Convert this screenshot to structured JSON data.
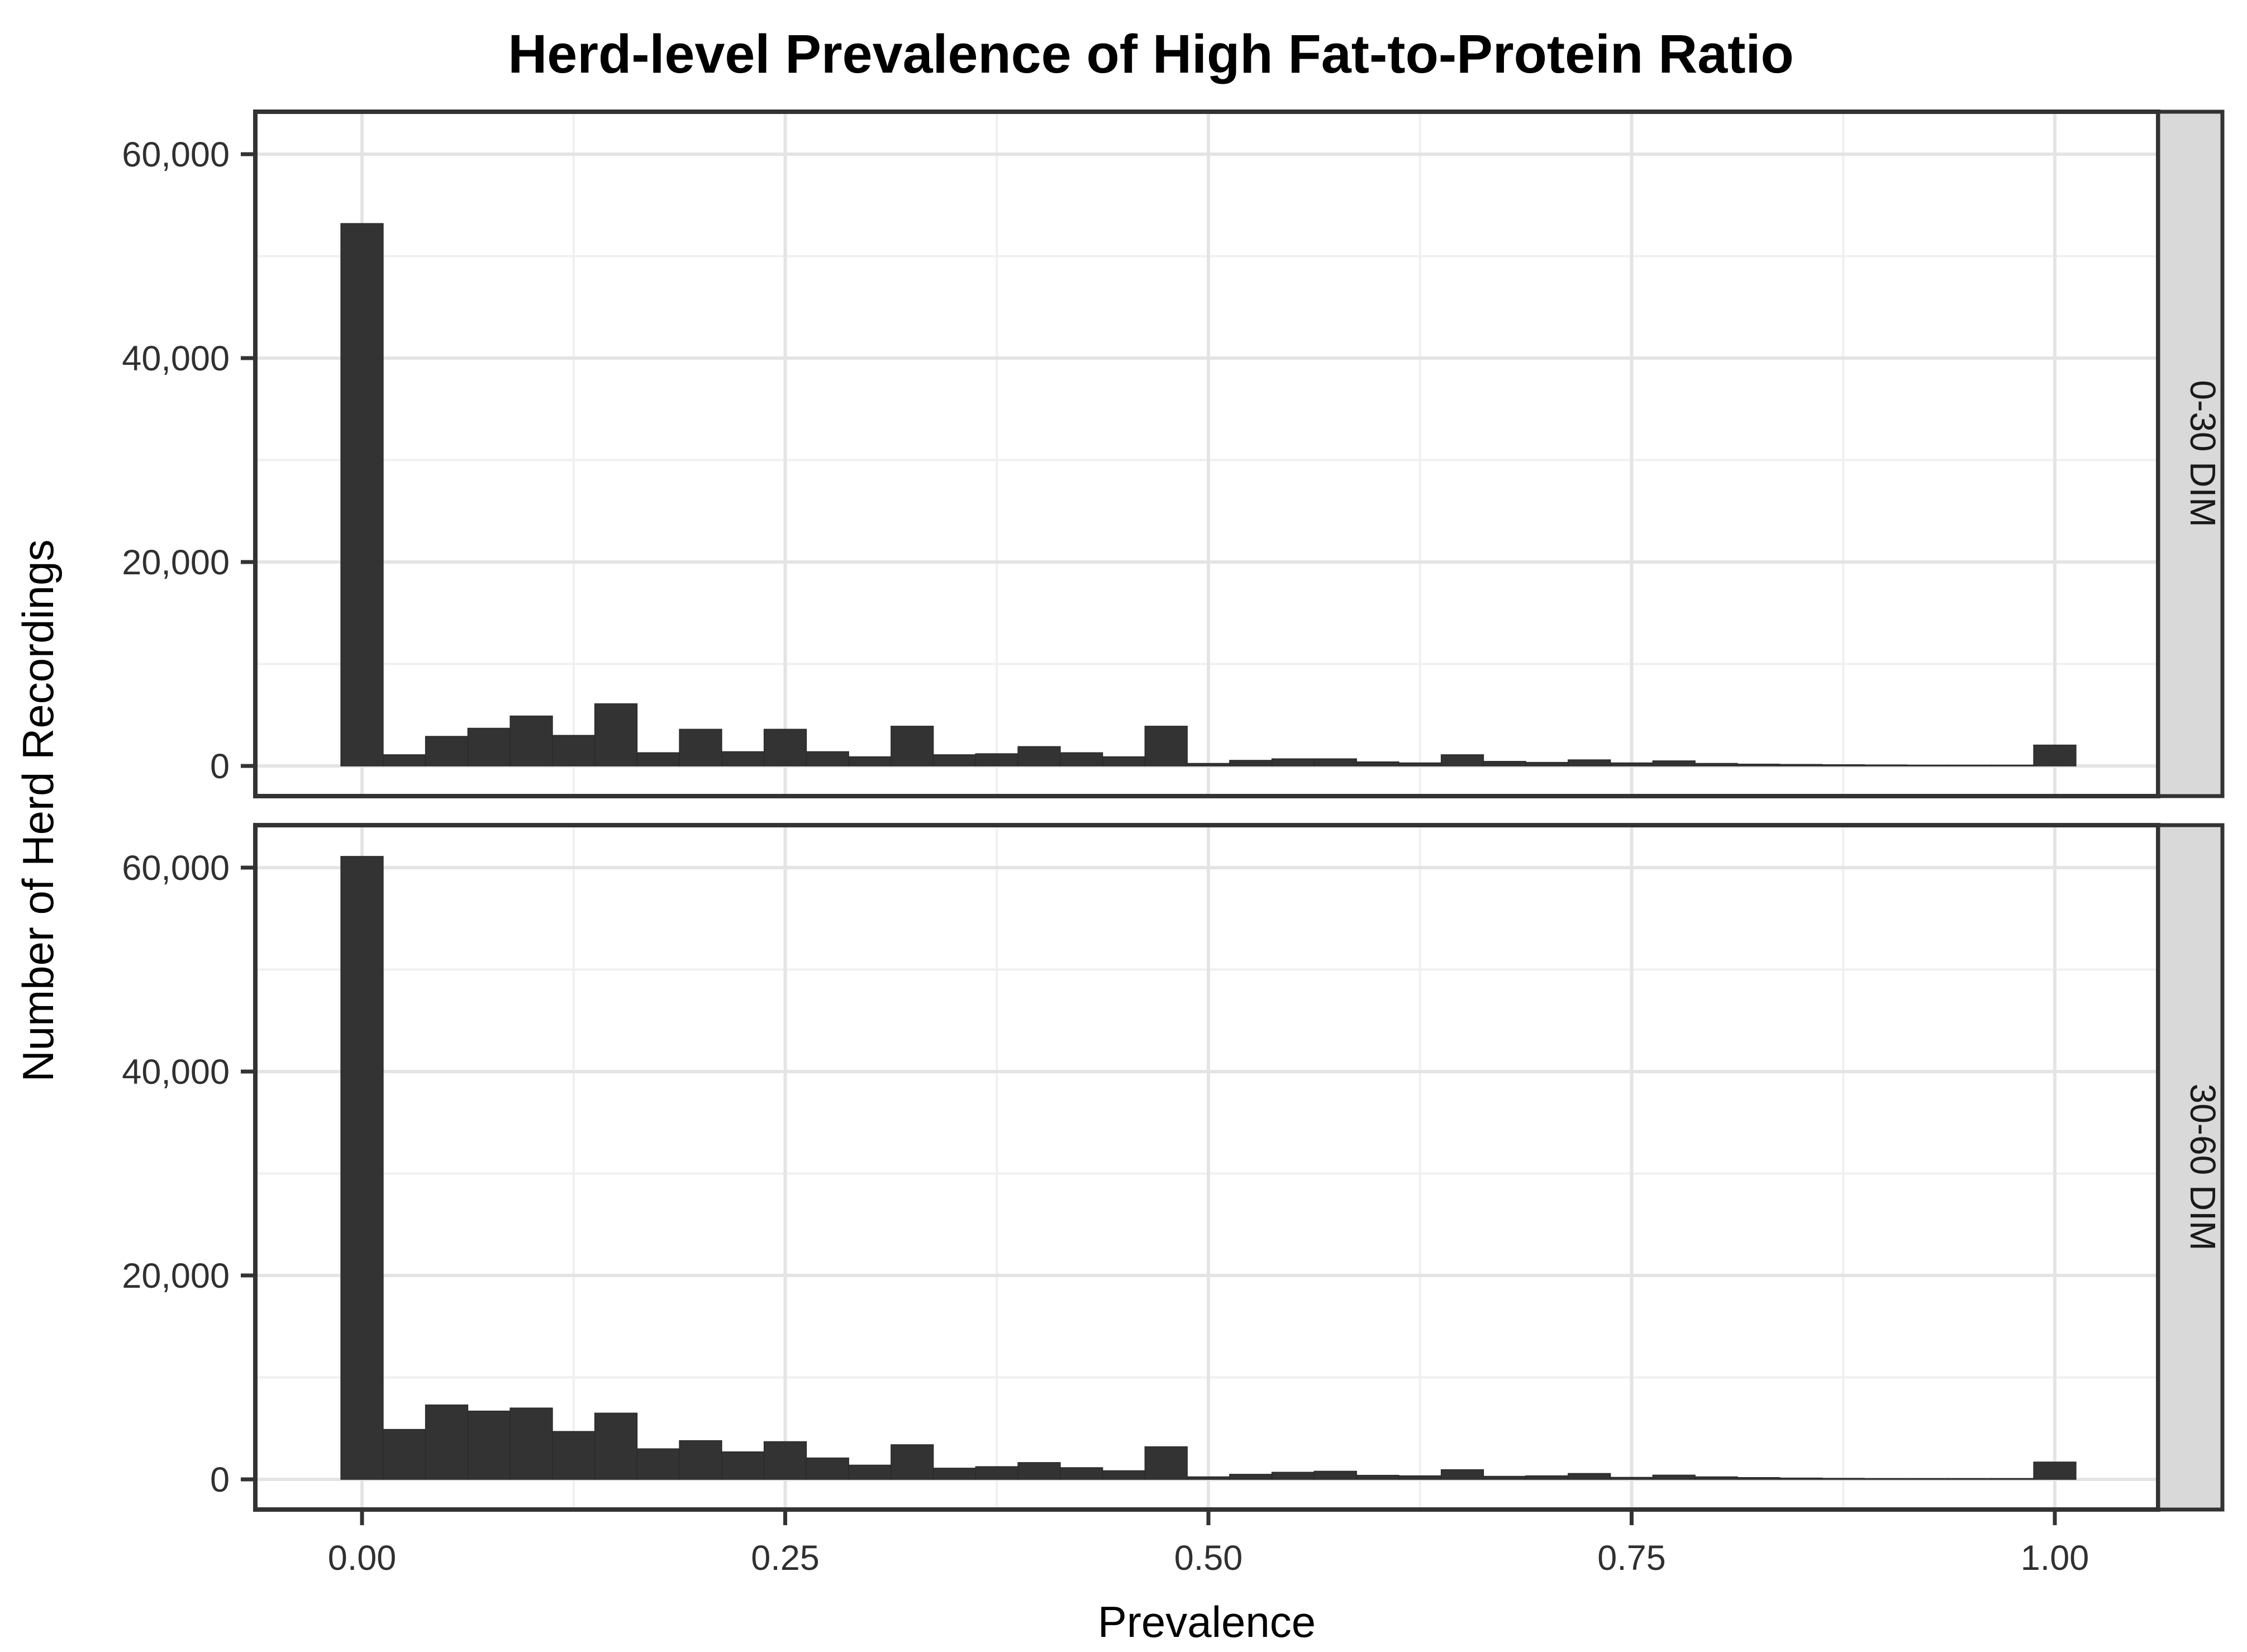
{
  "title": "Herd-level Prevalence of High Fat-to-Protein Ratio",
  "chart_data": {
    "type": "bar",
    "subtype": "faceted-histogram",
    "title": "Herd-level Prevalence of High Fat-to-Protein Ratio",
    "xlabel": "Prevalence",
    "ylabel": "Number of Herd Recordings",
    "xlim": [
      -0.063,
      1.061
    ],
    "ylim": [
      0,
      64000
    ],
    "x_tick_values": [
      0,
      0.25,
      0.5,
      0.75,
      1.0
    ],
    "x_tick_labels": [
      "0.00",
      "0.25",
      "0.50",
      "0.75",
      "1.00"
    ],
    "x_minor_values": [
      0.125,
      0.375,
      0.625,
      0.875
    ],
    "y_tick_values": [
      0,
      20000,
      40000,
      60000
    ],
    "y_tick_labels": [
      "0",
      "20,000",
      "40,000",
      "60,000"
    ],
    "y_minor_values": [
      10000,
      30000,
      50000
    ],
    "grid": true,
    "legend_position": "none",
    "binwidth": 0.025,
    "bin_centers": [
      0.0,
      0.025,
      0.05,
      0.075,
      0.1,
      0.125,
      0.15,
      0.175,
      0.2,
      0.225,
      0.25,
      0.275,
      0.3,
      0.325,
      0.35,
      0.375,
      0.4,
      0.425,
      0.45,
      0.475,
      0.5,
      0.525,
      0.55,
      0.575,
      0.6,
      0.625,
      0.65,
      0.675,
      0.7,
      0.725,
      0.75,
      0.775,
      0.8,
      0.825,
      0.85,
      0.875,
      0.9,
      0.925,
      0.95,
      0.975,
      1.0
    ],
    "facets": [
      {
        "label": "0-30 DIM",
        "values": [
          53200,
          1100,
          2900,
          3700,
          4900,
          3000,
          6100,
          1300,
          3600,
          1400,
          3600,
          1400,
          900,
          3900,
          1100,
          1200,
          1900,
          1300,
          900,
          3900,
          250,
          550,
          700,
          700,
          400,
          300,
          1100,
          450,
          350,
          600,
          300,
          500,
          250,
          180,
          150,
          120,
          100,
          80,
          50,
          40,
          2050
        ]
      },
      {
        "label": "30-60 DIM",
        "values": [
          61100,
          4900,
          7300,
          6700,
          7000,
          4700,
          6500,
          3000,
          3800,
          2700,
          3700,
          2100,
          1400,
          3400,
          1100,
          1250,
          1650,
          1150,
          850,
          3200,
          250,
          500,
          700,
          800,
          400,
          350,
          950,
          300,
          350,
          580,
          200,
          420,
          250,
          180,
          130,
          100,
          80,
          60,
          40,
          30,
          1700
        ]
      }
    ],
    "colors": {
      "bar_fill": "#333333",
      "bar_stroke": "#2a2a2a",
      "panel_bg": "#ffffff",
      "panel_border": "#333333",
      "grid_major": "#e4e4e4",
      "grid_minor": "#f0f0f0",
      "strip_bg": "#d9d9d9",
      "strip_border": "#333333",
      "tick_color": "#333333"
    }
  }
}
